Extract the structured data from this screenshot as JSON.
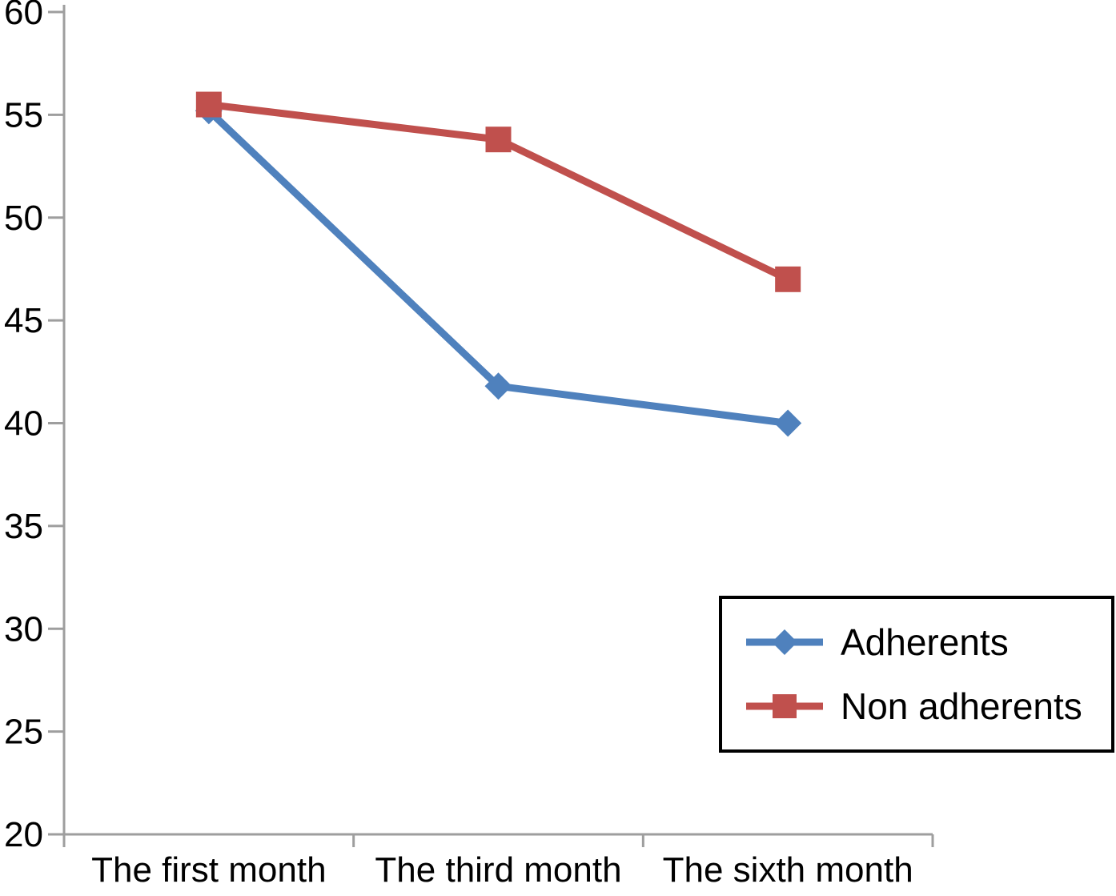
{
  "chart_data": {
    "type": "line",
    "categories": [
      "The first month",
      "The third month",
      "The sixth month"
    ],
    "series": [
      {
        "name": "Adherents",
        "values": [
          55.2,
          41.8,
          40.0
        ],
        "color": "#4f81bd",
        "marker": "diamond"
      },
      {
        "name": "Non adherents",
        "values": [
          55.5,
          53.8,
          47.0
        ],
        "color": "#c0504d",
        "marker": "square"
      }
    ],
    "title": "",
    "xlabel": "",
    "ylabel": "",
    "ylim": [
      20,
      60
    ],
    "ytick_step": 5,
    "grid": false,
    "legend_position": "bottom-right",
    "axis_color": "#9e9e9e",
    "tick_label_color": "#000000",
    "background_color": "#ffffff"
  }
}
